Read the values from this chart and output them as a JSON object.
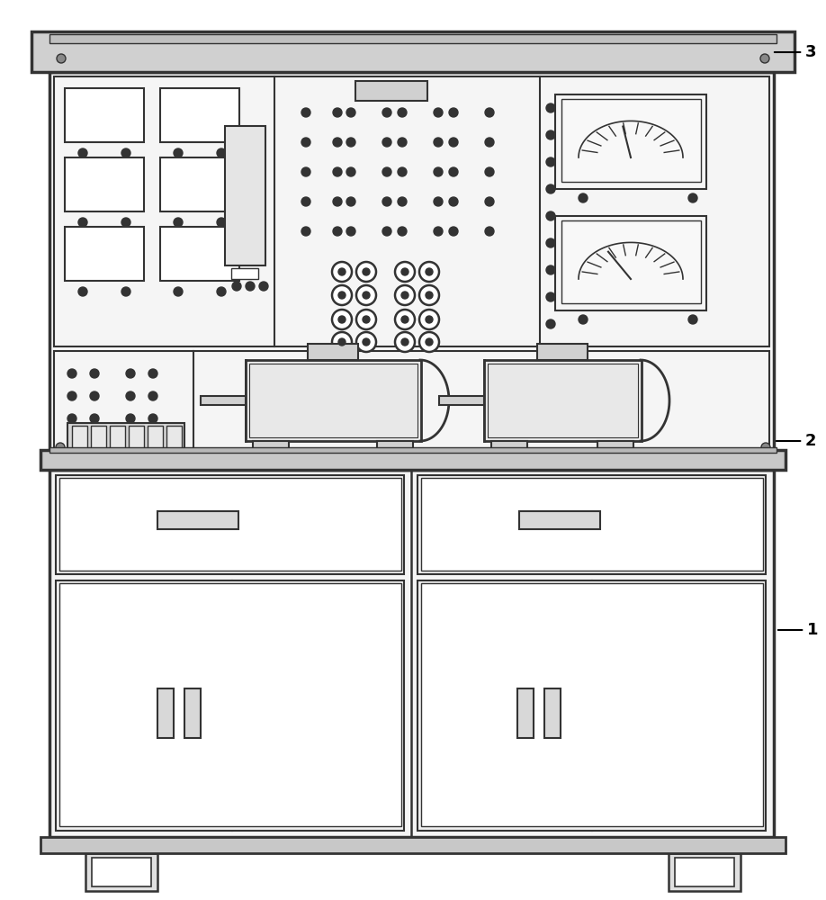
{
  "lc": "#333333",
  "lc2": "#555555",
  "bg": "#ffffff",
  "panel_bg": "#f5f5f5",
  "gray1": "#d8d8d8",
  "gray2": "#e8e8e8",
  "gray3": "#c8c8c8"
}
